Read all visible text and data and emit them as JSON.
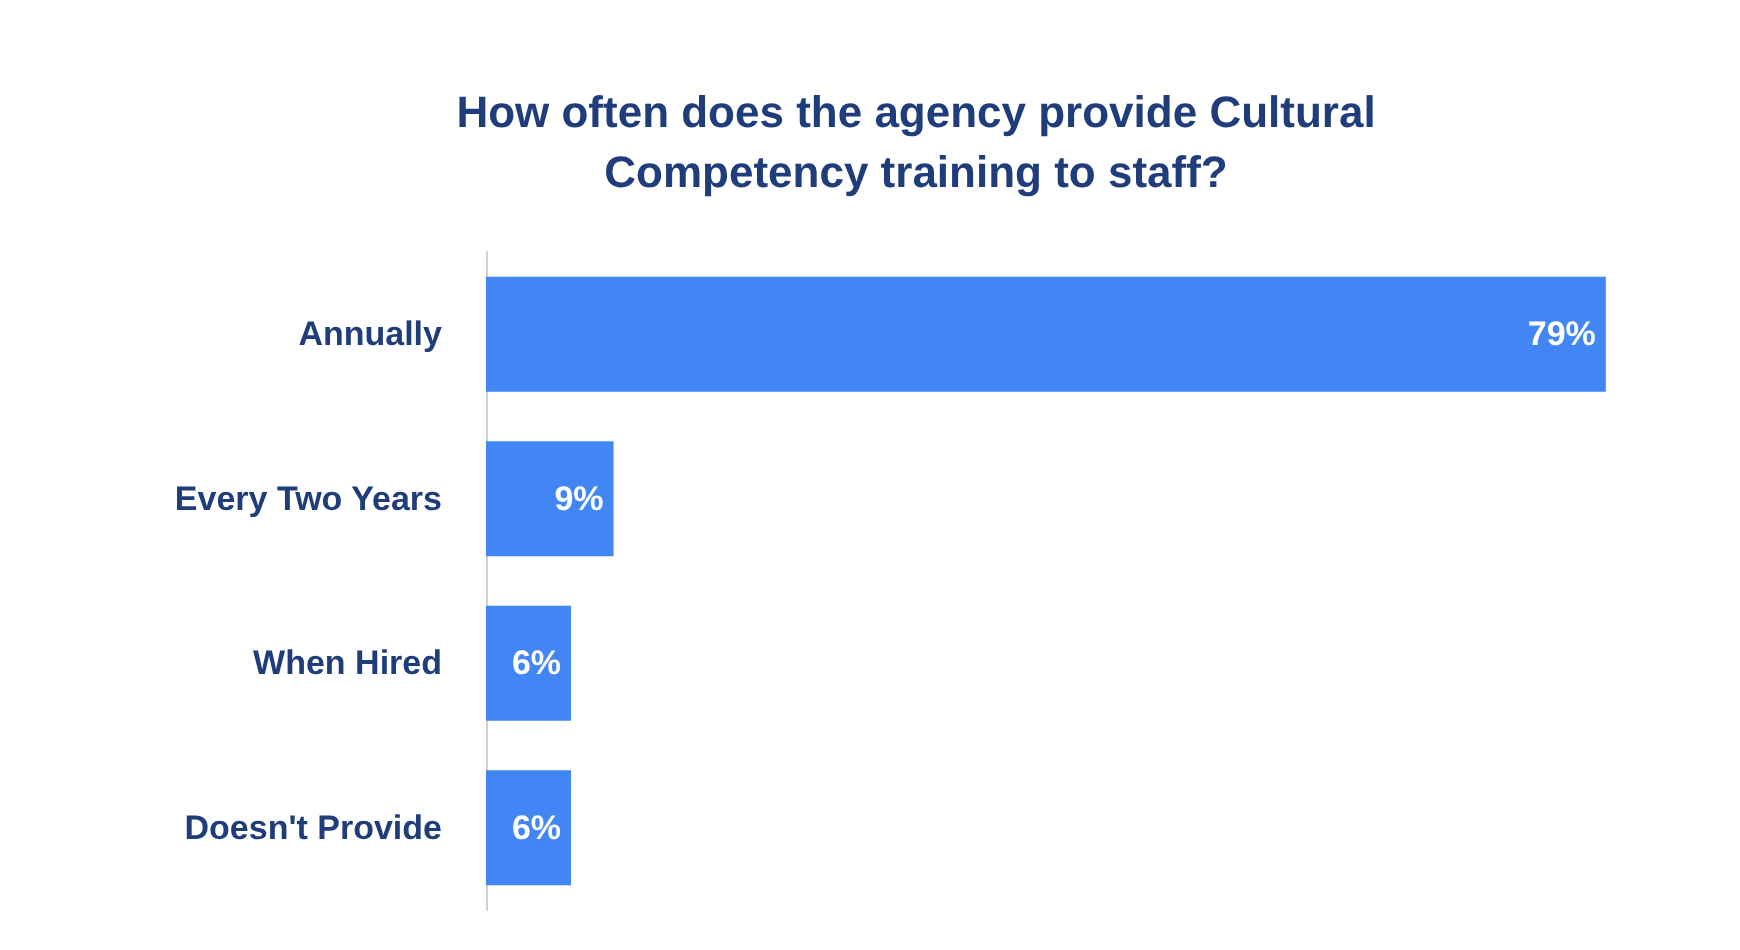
{
  "chart_data": {
    "type": "bar",
    "orientation": "horizontal",
    "title": "How often does the agency provide Cultural\nCompetency training to staff?",
    "categories": [
      "Annually",
      "Every Two Years",
      "When Hired",
      "Doesn't Provide"
    ],
    "values": [
      79,
      9,
      6,
      6
    ],
    "value_labels": [
      "79%",
      "9%",
      "6%",
      "6%"
    ],
    "color": "#4285f4",
    "grid": false
  }
}
